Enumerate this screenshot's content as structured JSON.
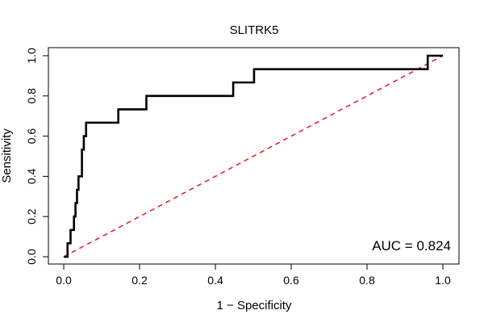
{
  "chart_data": {
    "type": "line",
    "title": "SLITRK5",
    "xlabel": "1 − Specificity",
    "ylabel": "Sensitivity",
    "xlim": [
      0,
      1
    ],
    "ylim": [
      0,
      1
    ],
    "x_ticks": [
      "0.0",
      "0.2",
      "0.4",
      "0.6",
      "0.8",
      "1.0"
    ],
    "y_ticks": [
      "0.0",
      "0.2",
      "0.4",
      "0.6",
      "0.8",
      "1.0"
    ],
    "grid": false,
    "annotation": "AUC = 0.824",
    "series": [
      {
        "color": "#000000",
        "style": "step",
        "points": [
          [
            0.0,
            0.0
          ],
          [
            0.01,
            0.0
          ],
          [
            0.01,
            0.067
          ],
          [
            0.018,
            0.067
          ],
          [
            0.018,
            0.133
          ],
          [
            0.027,
            0.133
          ],
          [
            0.027,
            0.2
          ],
          [
            0.031,
            0.2
          ],
          [
            0.031,
            0.267
          ],
          [
            0.035,
            0.267
          ],
          [
            0.035,
            0.333
          ],
          [
            0.039,
            0.333
          ],
          [
            0.039,
            0.4
          ],
          [
            0.048,
            0.4
          ],
          [
            0.048,
            0.533
          ],
          [
            0.053,
            0.533
          ],
          [
            0.053,
            0.6
          ],
          [
            0.059,
            0.6
          ],
          [
            0.059,
            0.667
          ],
          [
            0.144,
            0.667
          ],
          [
            0.144,
            0.733
          ],
          [
            0.218,
            0.733
          ],
          [
            0.218,
            0.8
          ],
          [
            0.447,
            0.8
          ],
          [
            0.447,
            0.867
          ],
          [
            0.502,
            0.867
          ],
          [
            0.502,
            0.933
          ],
          [
            0.96,
            0.933
          ],
          [
            0.96,
            1.0
          ],
          [
            1.0,
            1.0
          ]
        ]
      },
      {
        "color": "#e41a1c",
        "style": "dashed",
        "points": [
          [
            0,
            0
          ],
          [
            1,
            1
          ]
        ]
      }
    ]
  }
}
